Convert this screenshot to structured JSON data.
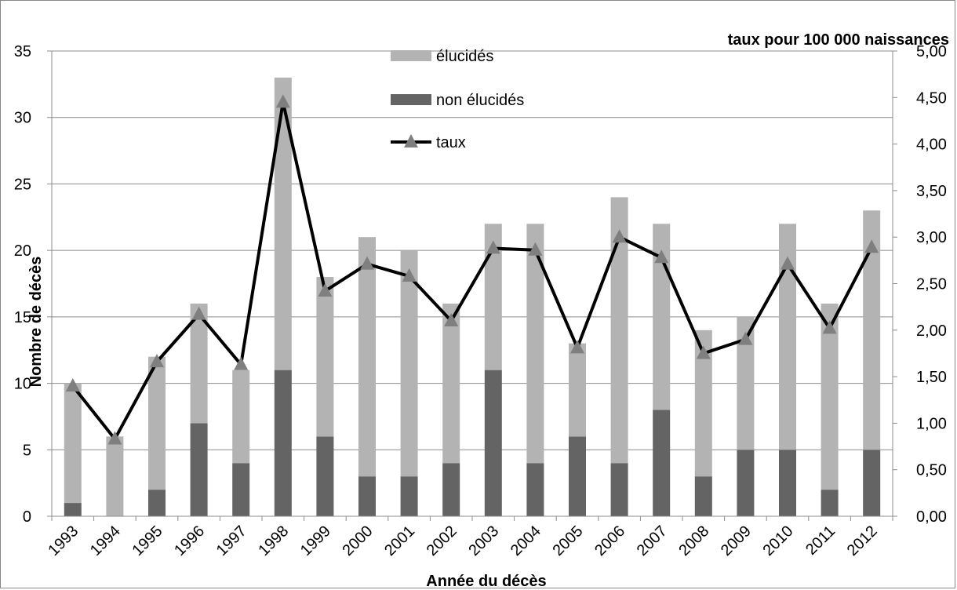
{
  "chart_data": {
    "type": "bar",
    "stacked": true,
    "title": "",
    "xlabel": "Année du décès",
    "ylabel": "Nombre de décès",
    "y2label": "taux pour 100 000 naissances",
    "categories": [
      "1993",
      "1994",
      "1995",
      "1996",
      "1997",
      "1998",
      "1999",
      "2000",
      "2001",
      "2002",
      "2003",
      "2004",
      "2005",
      "2006",
      "2007",
      "2008",
      "2009",
      "2010",
      "2011",
      "2012"
    ],
    "ylim": [
      0,
      35
    ],
    "yticks": [
      "0",
      "5",
      "10",
      "15",
      "20",
      "25",
      "30",
      "35"
    ],
    "y2lim": [
      0,
      5
    ],
    "y2ticks": [
      "0,00",
      "0,50",
      "1,00",
      "1,50",
      "2,00",
      "2,50",
      "3,00",
      "3,50",
      "4,00",
      "4,50",
      "5,00"
    ],
    "grid": true,
    "legend_position": "top-center",
    "series": [
      {
        "name": "élucidés",
        "kind": "bar",
        "color": "#b3b3b3",
        "values": [
          9,
          6,
          10,
          9,
          7,
          22,
          12,
          18,
          17,
          12,
          11,
          18,
          7,
          20,
          14,
          11,
          10,
          17,
          14,
          18
        ]
      },
      {
        "name": "non élucidés",
        "kind": "bar",
        "color": "#646464",
        "values": [
          1,
          0,
          2,
          7,
          4,
          11,
          6,
          3,
          3,
          4,
          11,
          4,
          6,
          4,
          8,
          3,
          5,
          5,
          2,
          5
        ]
      },
      {
        "name": "taux",
        "kind": "line",
        "axis": "right",
        "color": "#000000",
        "marker_color": "#7f7f7f",
        "values": [
          1.4,
          0.83,
          1.66,
          2.17,
          1.63,
          4.45,
          2.42,
          2.71,
          2.58,
          2.1,
          2.88,
          2.86,
          1.81,
          3.0,
          2.78,
          1.75,
          1.9,
          2.71,
          2.02,
          2.89
        ]
      }
    ]
  }
}
